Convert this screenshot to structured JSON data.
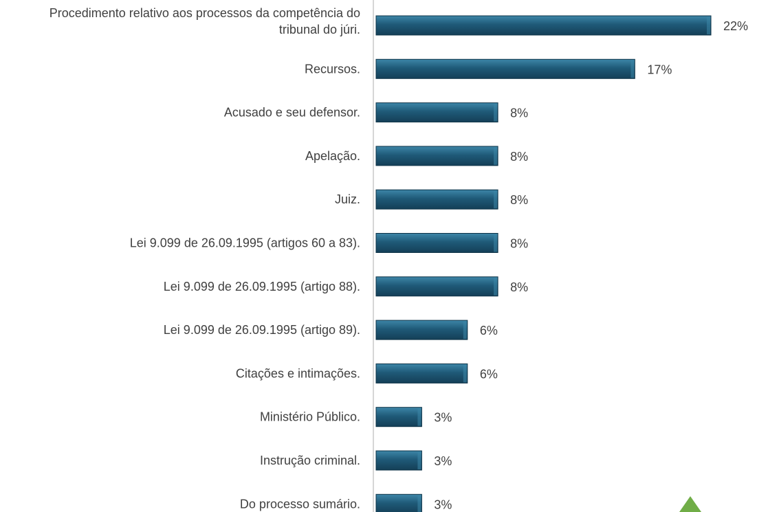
{
  "chart_data": {
    "type": "bar",
    "orientation": "horizontal",
    "title": "",
    "xlabel": "",
    "ylabel": "",
    "grid": false,
    "value_suffix": "%",
    "xlim": [
      0,
      22
    ],
    "bar_color": "#1f5a78",
    "bar_highlight": "#3d86a8",
    "axis_color": "#c8c8c8",
    "categories": [
      [
        "Procedimento relativo aos processos da competência do",
        "tribunal do júri."
      ],
      [
        "Recursos."
      ],
      [
        "Acusado e seu defensor."
      ],
      [
        "Apelação."
      ],
      [
        "Juiz."
      ],
      [
        "Lei 9.099 de 26.09.1995 (artigos 60 a 83)."
      ],
      [
        "Lei 9.099 de 26.09.1995 (artigo 88)."
      ],
      [
        "Lei 9.099 de 26.09.1995 (artigo 89)."
      ],
      [
        "Citações e intimações."
      ],
      [
        "Ministério Público."
      ],
      [
        "Instrução criminal."
      ],
      [
        "Do processo sumário."
      ]
    ],
    "values": [
      22,
      17,
      8,
      8,
      8,
      8,
      8,
      6,
      6,
      3,
      3,
      3
    ],
    "decor_triangle_color": "#70ad47"
  }
}
